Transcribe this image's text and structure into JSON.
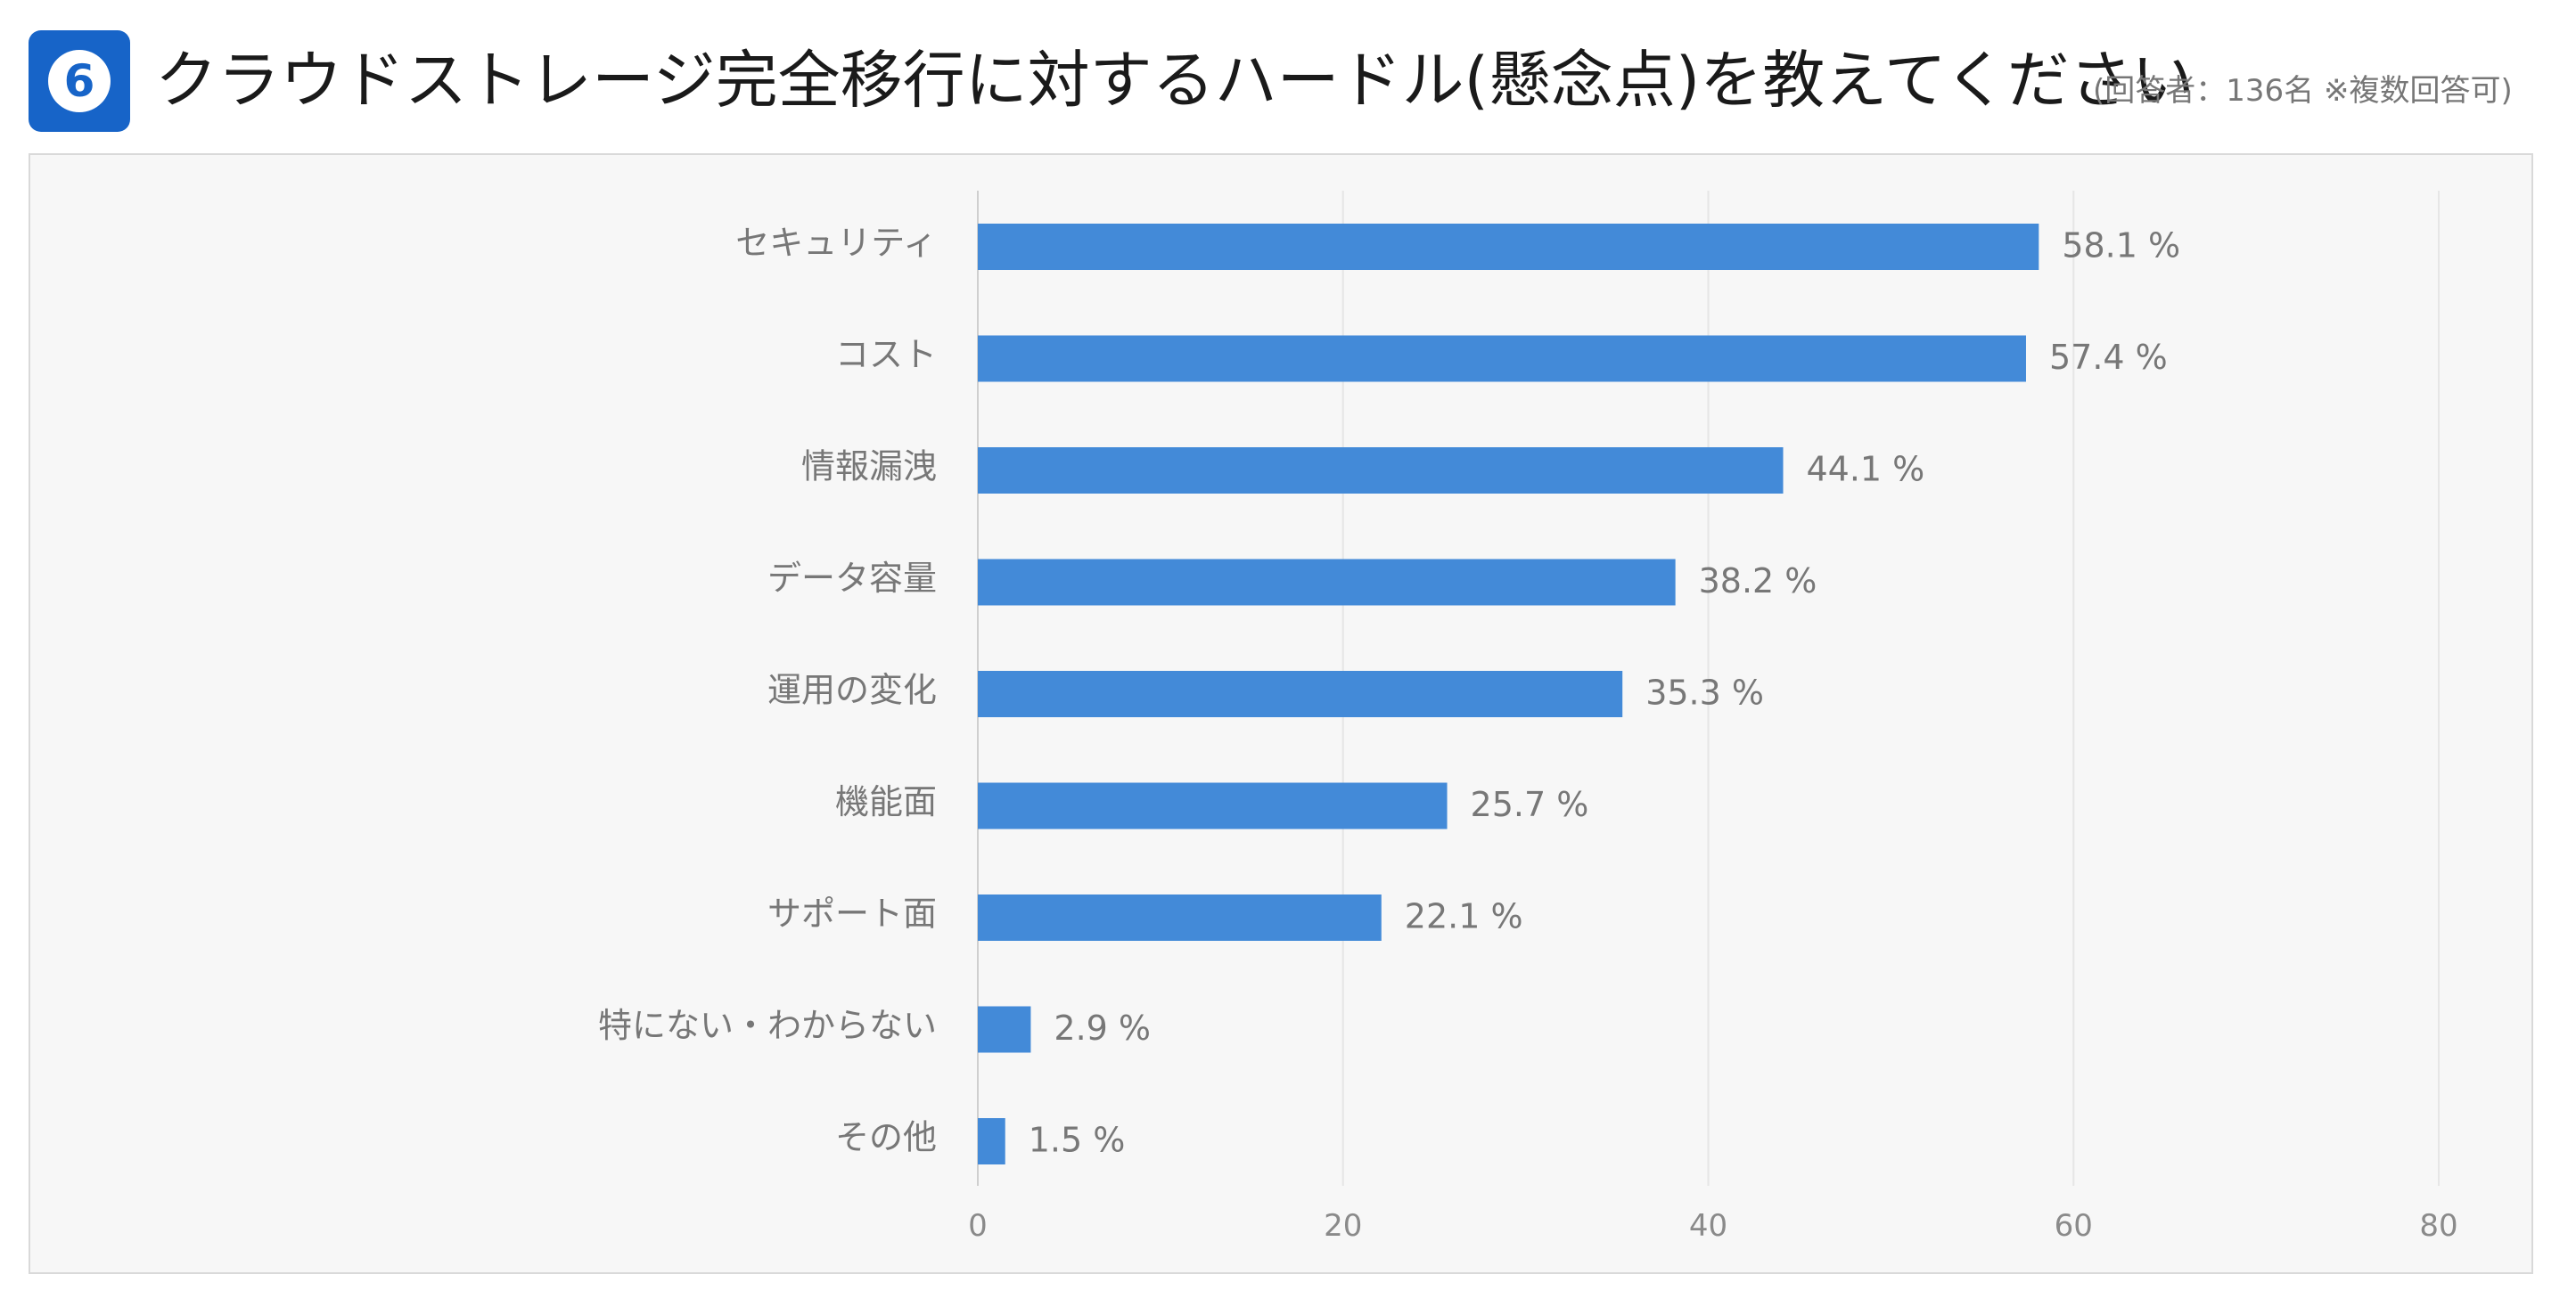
{
  "header": {
    "badge_number": "6",
    "title": "クラウドストレージ完全移行に対するハードル(懸念点)を教えてください",
    "subtitle": "(回答者：136名 ※複数回答可)"
  },
  "colors": {
    "badge": "#1764c8",
    "bar": "#438ad8",
    "panel_background": "#f7f7f7",
    "label_text": "#777777"
  },
  "chart_data": {
    "type": "bar",
    "orientation": "horizontal",
    "categories": [
      "セキュリティ",
      "コスト",
      "情報漏洩",
      "データ容量",
      "運用の変化",
      "機能面",
      "サポート面",
      "特にない・わからない",
      "その他"
    ],
    "values": [
      58.1,
      57.4,
      44.1,
      38.2,
      35.3,
      25.7,
      22.1,
      2.9,
      1.5
    ],
    "value_labels": [
      "58.1 %",
      "57.4 %",
      "44.1 %",
      "38.2 %",
      "35.3 %",
      "25.7 %",
      "22.1 %",
      "2.9 %",
      "1.5 %"
    ],
    "xlim": [
      0,
      80
    ],
    "xticks": [
      0,
      20,
      40,
      60,
      80
    ],
    "xtick_labels": [
      "0",
      "20",
      "40",
      "60",
      "80"
    ],
    "grid": true,
    "legend": "none"
  }
}
